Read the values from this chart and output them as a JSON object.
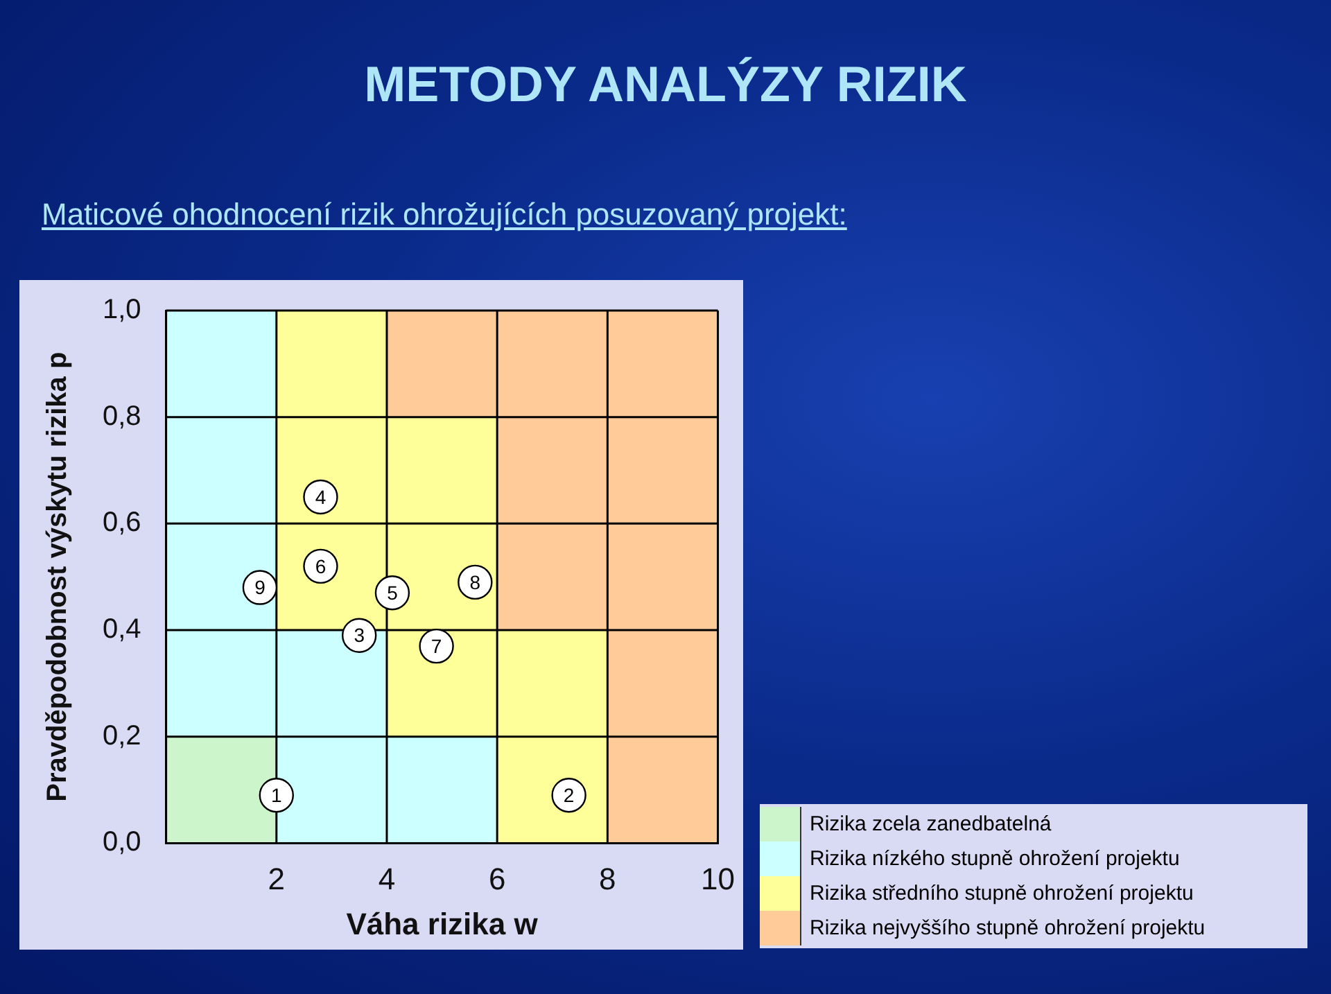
{
  "chart_data": {
    "type": "bar",
    "title": "METODY ANALÝZY RIZIK",
    "subtitle": "Maticové ohodnocení rizik ohrožujících posuzovaný projekt:",
    "xlabel": "Váha rizika w",
    "ylabel": "Pravděpodobnost výskytu rizika p",
    "xlim": [
      0,
      10
    ],
    "ylim": [
      0,
      1
    ],
    "xticks": [
      {
        "value": 0,
        "label": null
      },
      2,
      4,
      6,
      8,
      10
    ],
    "yticks": [
      {
        "value": 0,
        "label": "0,0"
      },
      {
        "value": 0.2,
        "label": "0,2"
      },
      {
        "value": 0.4,
        "label": "0,4"
      },
      {
        "value": 0.6,
        "label": "0,6"
      },
      {
        "value": 0.8,
        "label": "0,8"
      },
      {
        "value": 1,
        "label": "1,0"
      }
    ],
    "grid": true,
    "legend": "bottom right",
    "series": [
      {
        "name": "Rizika zcela zanedbatelná",
        "color": "#ccf5cc",
        "x": [
          1
        ],
        "base": [
          0
        ],
        "values": [
          0.2
        ]
      },
      {
        "name": "Rizika nízkého stupně ohrožení projektu",
        "color": "#ccffff",
        "x": [
          1,
          3,
          5
        ],
        "base": [
          0.2,
          0,
          0
        ],
        "values": [
          0.8,
          0.4,
          0.2
        ]
      },
      {
        "name": "Rizika středního stupně ohrožení projektu",
        "color": "#ffff99",
        "x": [
          3,
          5,
          7
        ],
        "base": [
          0.4,
          0.2,
          0
        ],
        "values": [
          0.6,
          0.6,
          0.4
        ]
      },
      {
        "name": "Rizika nejvyššího stupně ohrožení projektu",
        "color": "#ffcc99",
        "x": [
          5,
          7,
          9
        ],
        "base": [
          0.8,
          0.4,
          0
        ],
        "values": [
          0.2,
          0.6,
          1
        ]
      },
      {
        "type": "scatter",
        "color": "#ffffff",
        "x": [
          2.0,
          7.3,
          3.5,
          2.8,
          4.1,
          2.8,
          4.9,
          5.6,
          1.7
        ],
        "values": [
          0.09,
          0.09,
          0.39,
          0.65,
          0.47,
          0.52,
          0.37,
          0.49,
          0.48
        ]
      }
    ],
    "annotations": [
      {
        "text": "1",
        "x": 2.0,
        "y": 0.09
      },
      {
        "text": "2",
        "x": 7.3,
        "y": 0.09
      },
      {
        "text": "3",
        "x": 3.5,
        "y": 0.39
      },
      {
        "text": "4",
        "x": 2.8,
        "y": 0.65
      },
      {
        "text": "5",
        "x": 4.1,
        "y": 0.47
      },
      {
        "text": "6",
        "x": 2.8,
        "y": 0.52
      },
      {
        "text": "7",
        "x": 4.9,
        "y": 0.37
      },
      {
        "text": "8",
        "x": 5.6,
        "y": 0.49
      },
      {
        "text": "9",
        "x": 1.7,
        "y": 0.48
      }
    ]
  }
}
